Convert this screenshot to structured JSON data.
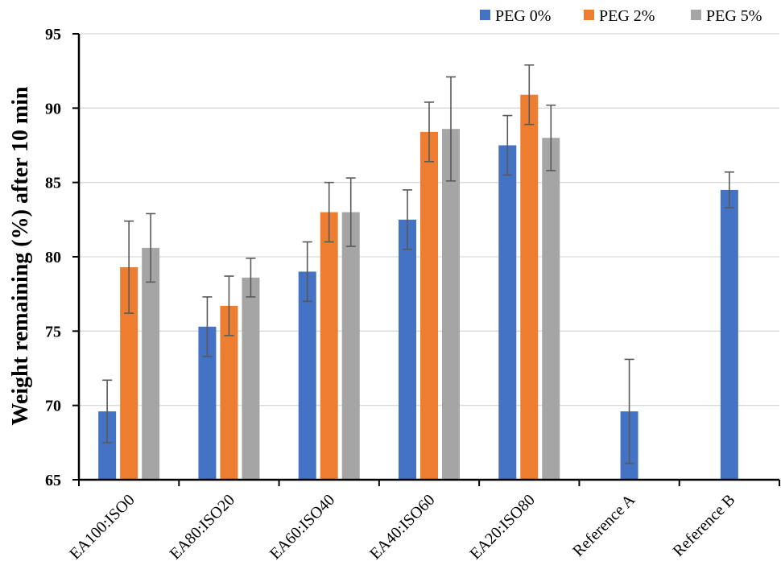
{
  "chart_data": {
    "type": "bar",
    "categories": [
      "EA100:ISO0",
      "EA80:ISO20",
      "EA60:ISO40",
      "EA40:ISO60",
      "EA20:ISO80",
      "Reference A",
      "Reference B"
    ],
    "series": [
      {
        "name": "PEG 0%",
        "color": "#4472C4",
        "values": [
          69.6,
          75.3,
          79.0,
          82.5,
          87.5,
          69.6,
          84.5
        ],
        "errors": [
          2.1,
          2.0,
          2.0,
          2.0,
          2.0,
          3.5,
          1.2
        ]
      },
      {
        "name": "PEG 2%",
        "color": "#ED7D31",
        "values": [
          79.3,
          76.7,
          83.0,
          88.4,
          90.9,
          null,
          null
        ],
        "errors": [
          3.1,
          2.0,
          2.0,
          2.0,
          2.0,
          null,
          null
        ]
      },
      {
        "name": "PEG 5%",
        "color": "#A5A5A5",
        "values": [
          80.6,
          78.6,
          83.0,
          88.6,
          88.0,
          null,
          null
        ],
        "errors": [
          2.3,
          1.3,
          2.3,
          3.5,
          2.2,
          null,
          null
        ]
      }
    ],
    "xlabel": "",
    "ylabel": "Weight remaining (%) after 10 min",
    "ylim": [
      65,
      95
    ],
    "yticks": [
      65,
      70,
      75,
      80,
      85,
      90,
      95
    ],
    "grid": true,
    "legend_position": "top-right"
  }
}
